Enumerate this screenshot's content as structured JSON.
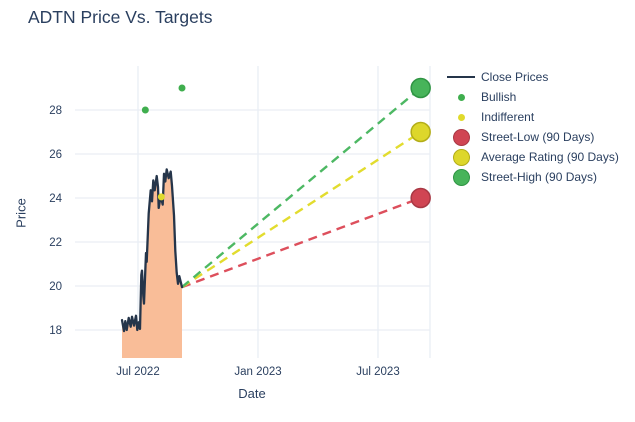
{
  "page_title": "ADTN Price Vs. Targets",
  "colors": {
    "text": "#2a3f5f",
    "grid": "#e9eef4",
    "close_line": "#25354a",
    "close_fill": "#f9bd98",
    "bullish": "#3fae4e",
    "indifferent": "#e0da2c",
    "red_fill": "#d04553",
    "red_stroke": "#a83844",
    "red_dash": "#dd4f5c",
    "yellow_fill": "#ddd72b",
    "yellow_stroke": "#b3ad18",
    "yellow_dash": "#e2dc2e",
    "green_fill": "#47b45a",
    "green_stroke": "#2f9443",
    "green_dash": "#4db863"
  },
  "legend": {
    "items": [
      {
        "id": "close-prices",
        "label": "Close Prices",
        "swatch": "line",
        "color": "#25354a"
      },
      {
        "id": "bullish",
        "label": "Bullish",
        "swatch": "dot",
        "color": "#3fae4e"
      },
      {
        "id": "indifferent",
        "label": "Indifferent",
        "swatch": "dot",
        "color": "#e0da2c"
      },
      {
        "id": "street-low",
        "label": "Street-Low (90 Days)",
        "swatch": "big",
        "color": "#d04553",
        "stroke": "#a83844"
      },
      {
        "id": "average-rating",
        "label": "Average Rating (90 Days)",
        "swatch": "big",
        "color": "#ddd72b",
        "stroke": "#b3ad18"
      },
      {
        "id": "street-high",
        "label": "Street-High (90 Days)",
        "swatch": "big",
        "color": "#47b45a",
        "stroke": "#2f9443"
      }
    ]
  },
  "chart_data": {
    "type": "line",
    "title": "ADTN Price Vs. Targets",
    "xlabel": "Date",
    "ylabel": "Price",
    "x_ticks": [
      {
        "label": "Jul 2022",
        "date": "2022-07-01"
      },
      {
        "label": "Jan 2023",
        "date": "2023-01-01"
      },
      {
        "label": "Jul 2023",
        "date": "2023-07-01"
      }
    ],
    "y_ticks": [
      18,
      20,
      22,
      24,
      26,
      28
    ],
    "ylim": [
      16.7,
      30.0
    ],
    "grid_on": true,
    "legend_position": "right",
    "series": {
      "close_prices": {
        "name": "Close Prices",
        "points": [
          [
            "2022-06-07",
            18.45
          ],
          [
            "2022-06-10",
            17.95
          ],
          [
            "2022-06-12",
            18.4
          ],
          [
            "2022-06-14",
            18.0
          ],
          [
            "2022-06-17",
            18.55
          ],
          [
            "2022-06-20",
            18.15
          ],
          [
            "2022-06-22",
            18.6
          ],
          [
            "2022-06-25",
            18.2
          ],
          [
            "2022-06-28",
            18.65
          ],
          [
            "2022-06-30",
            18.0
          ],
          [
            "2022-07-02",
            18.35
          ],
          [
            "2022-07-04",
            18.05
          ],
          [
            "2022-07-06",
            20.5
          ],
          [
            "2022-07-07",
            20.7
          ],
          [
            "2022-07-09",
            19.55
          ],
          [
            "2022-07-10",
            19.2
          ],
          [
            "2022-07-13",
            21.5
          ],
          [
            "2022-07-14",
            21.1
          ],
          [
            "2022-07-17",
            23.3
          ],
          [
            "2022-07-20",
            24.35
          ],
          [
            "2022-07-22",
            23.85
          ],
          [
            "2022-07-24",
            24.8
          ],
          [
            "2022-07-26",
            24.35
          ],
          [
            "2022-07-29",
            25.0
          ],
          [
            "2022-07-31",
            24.5
          ],
          [
            "2022-08-02",
            23.55
          ],
          [
            "2022-08-05",
            24.1
          ],
          [
            "2022-08-08",
            23.7
          ],
          [
            "2022-08-10",
            25.1
          ],
          [
            "2022-08-12",
            24.75
          ],
          [
            "2022-08-14",
            25.3
          ],
          [
            "2022-08-17",
            24.9
          ],
          [
            "2022-08-20",
            25.2
          ],
          [
            "2022-08-22",
            24.55
          ],
          [
            "2022-08-25",
            23.2
          ],
          [
            "2022-08-27",
            21.6
          ],
          [
            "2022-08-29",
            20.6
          ],
          [
            "2022-08-31",
            20.1
          ],
          [
            "2022-09-03",
            20.45
          ],
          [
            "2022-09-07",
            19.95
          ]
        ]
      },
      "bullish": {
        "name": "Bullish",
        "points": [
          [
            "2022-07-12",
            28.0
          ],
          [
            "2022-09-07",
            29.0
          ]
        ]
      },
      "indifferent": {
        "name": "Indifferent",
        "points": [
          [
            "2022-08-06",
            24.05
          ]
        ]
      },
      "projection_origin": [
        "2022-09-07",
        19.95
      ],
      "targets": [
        {
          "name": "Street-Low (90 Days)",
          "date": "2023-09-05",
          "value": 24.0,
          "fill": "#d04553",
          "stroke": "#a83844",
          "dash": "#dd4f5c"
        },
        {
          "name": "Average Rating (90 Days)",
          "date": "2023-09-05",
          "value": 27.0,
          "fill": "#ddd72b",
          "stroke": "#b3ad18",
          "dash": "#e2dc2e"
        },
        {
          "name": "Street-High (90 Days)",
          "date": "2023-09-05",
          "value": 29.0,
          "fill": "#47b45a",
          "stroke": "#2f9443",
          "dash": "#4db863"
        }
      ]
    }
  }
}
